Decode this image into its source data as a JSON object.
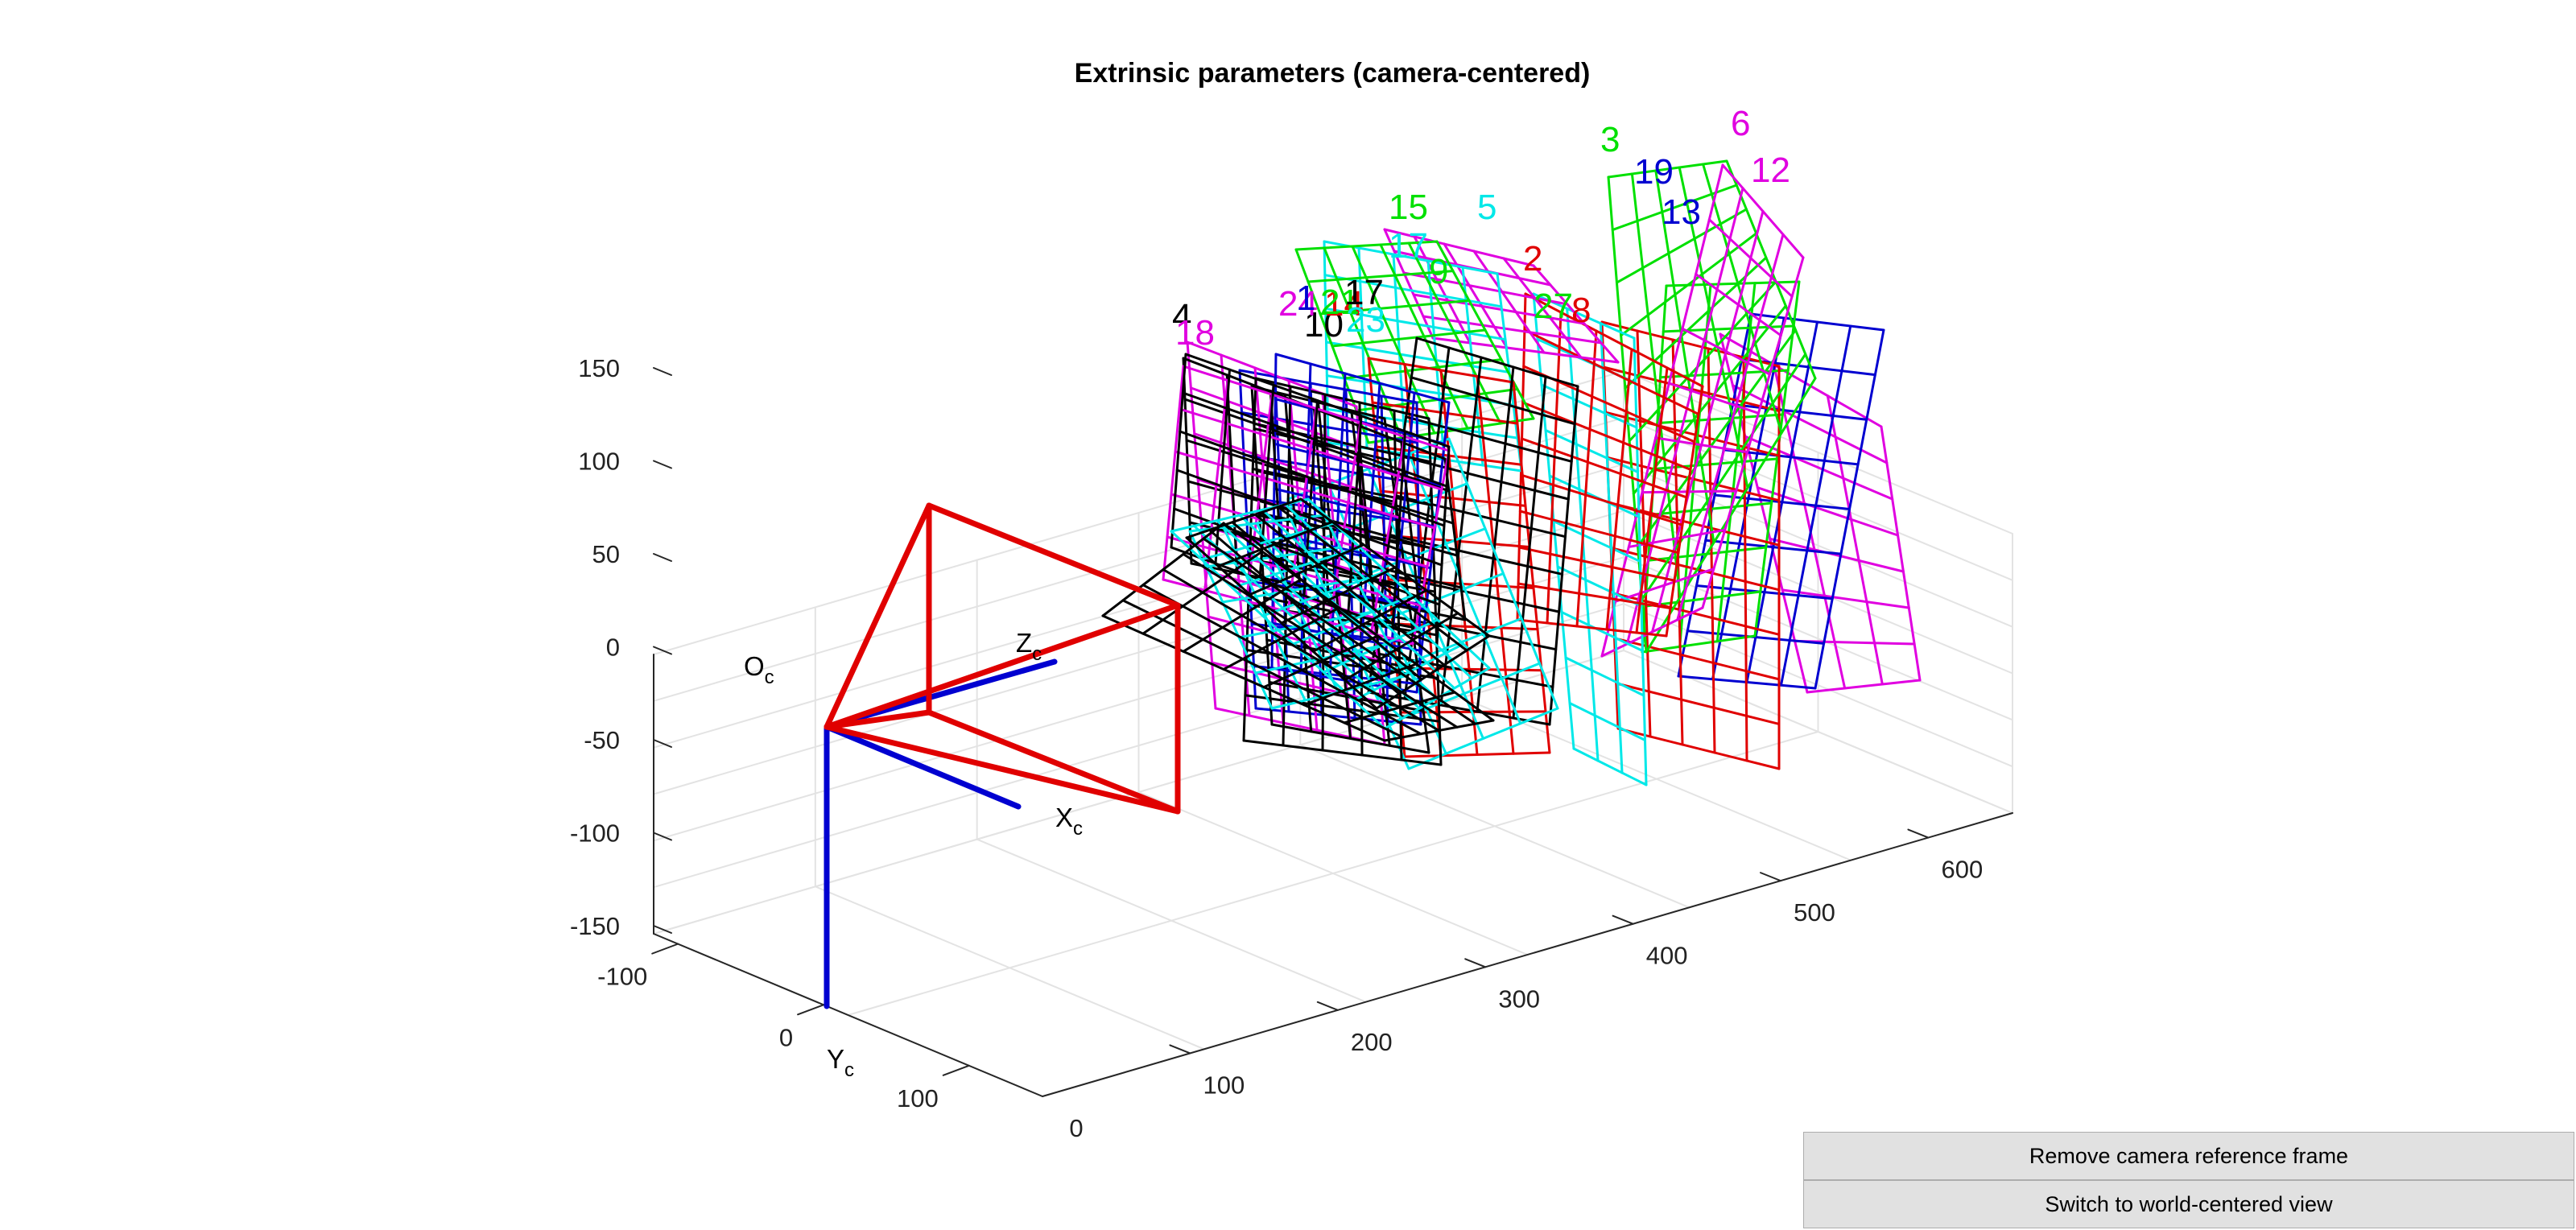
{
  "figure": {
    "title": "Extrinsic parameters (camera-centered)",
    "origin_label": "O",
    "origin_sub": "c",
    "x_axis_label": "X",
    "x_axis_sub": "c",
    "y_axis_label": "Y",
    "y_axis_sub": "c",
    "z_axis_label": "Z",
    "z_axis_sub": "c",
    "vertical_ticks": [
      "150",
      "100",
      "50",
      "0",
      "-50",
      "-100",
      "-150"
    ],
    "y_ticks": [
      "-100",
      "0",
      "100"
    ],
    "depth_ticks": [
      "0",
      "100",
      "200",
      "300",
      "400",
      "500",
      "600"
    ],
    "colors": {
      "red": "#e00000",
      "green": "#00e000",
      "blue": "#0000d0",
      "cyan": "#00e8e8",
      "magenta": "#e000e0",
      "black": "#000000",
      "grid": "#e3e3e3",
      "axis": "#262626"
    },
    "plane_labels": [
      {
        "text": "4",
        "color": "black"
      },
      {
        "text": "18",
        "color": "magenta"
      },
      {
        "text": "10",
        "color": "black"
      },
      {
        "text": "24",
        "color": "magenta"
      },
      {
        "text": "1",
        "color": "blue"
      },
      {
        "text": "14",
        "color": "red"
      },
      {
        "text": "21",
        "color": "green"
      },
      {
        "text": "17",
        "color": "black"
      },
      {
        "text": "23",
        "color": "cyan"
      },
      {
        "text": "15",
        "color": "green"
      },
      {
        "text": "17",
        "color": "cyan"
      },
      {
        "text": "9",
        "color": "green"
      },
      {
        "text": "5",
        "color": "cyan"
      },
      {
        "text": "2",
        "color": "red"
      },
      {
        "text": "27",
        "color": "green"
      },
      {
        "text": "8",
        "color": "red"
      },
      {
        "text": "3",
        "color": "green"
      },
      {
        "text": "19",
        "color": "blue"
      },
      {
        "text": "13",
        "color": "blue"
      },
      {
        "text": "6",
        "color": "magenta"
      },
      {
        "text": "12",
        "color": "magenta"
      }
    ]
  },
  "buttons": {
    "remove_frame": "Remove camera reference frame",
    "switch_view": "Switch to world-centered view"
  }
}
